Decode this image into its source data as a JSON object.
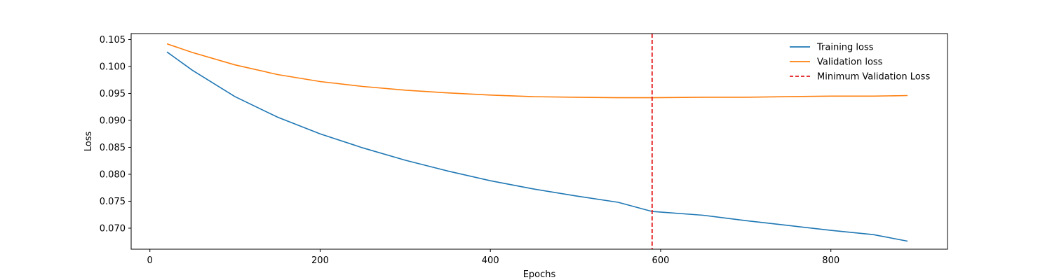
{
  "chart_data": {
    "type": "line",
    "title": "",
    "xlabel": "Epochs",
    "ylabel": "Loss",
    "xlim": [
      -22,
      937
    ],
    "ylim": [
      0.0661,
      0.1061
    ],
    "xticks": [
      0,
      200,
      400,
      600,
      800
    ],
    "xtick_labels": [
      "0",
      "200",
      "400",
      "600",
      "800"
    ],
    "yticks": [
      0.07,
      0.075,
      0.08,
      0.085,
      0.09,
      0.095,
      0.1,
      0.105
    ],
    "ytick_labels": [
      "0.070",
      "0.075",
      "0.080",
      "0.085",
      "0.090",
      "0.095",
      "0.100",
      "0.105"
    ],
    "grid": false,
    "legend_position": "top-right",
    "x": [
      20,
      50,
      100,
      150,
      200,
      250,
      300,
      350,
      400,
      450,
      500,
      550,
      590,
      650,
      700,
      750,
      800,
      850,
      890
    ],
    "series": [
      {
        "name": "Training loss",
        "color": "#1f77b4",
        "style": "solid",
        "values": [
          0.1027,
          0.0993,
          0.0944,
          0.0906,
          0.0875,
          0.0849,
          0.0826,
          0.0806,
          0.0788,
          0.0773,
          0.076,
          0.0748,
          0.0731,
          0.0724,
          0.0714,
          0.0705,
          0.0696,
          0.0688,
          0.0676
        ]
      },
      {
        "name": "Validation loss",
        "color": "#ff7f0e",
        "style": "solid",
        "values": [
          0.1042,
          0.1026,
          0.1003,
          0.0985,
          0.0972,
          0.0963,
          0.0956,
          0.0951,
          0.0947,
          0.0944,
          0.0943,
          0.0942,
          0.0942,
          0.0943,
          0.0943,
          0.0944,
          0.0945,
          0.0945,
          0.0946
        ]
      }
    ],
    "vlines": [
      {
        "name": "Minimum Validation Loss",
        "x": 590,
        "color": "#e31a1c",
        "style": "dashed"
      }
    ]
  }
}
